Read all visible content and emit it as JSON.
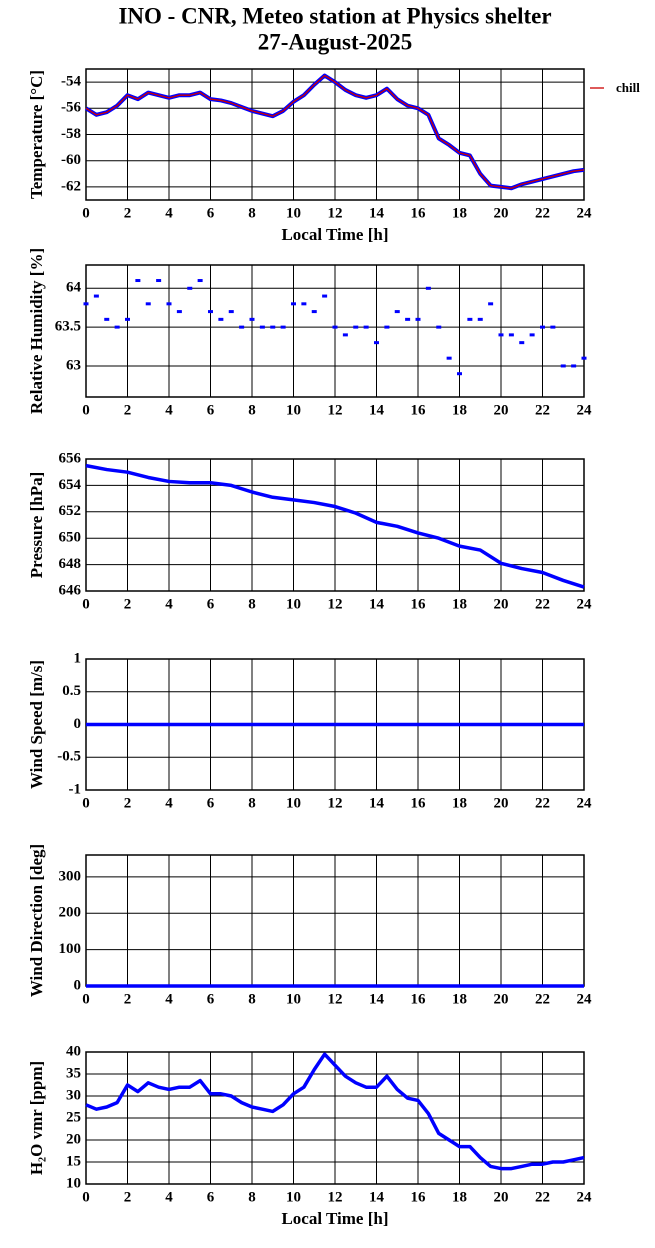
{
  "header": {
    "title": "INO - CNR, Meteo station at Physics shelter",
    "subtitle": "27-August-2025"
  },
  "chart_data": [
    {
      "type": "line",
      "ylabel": "Temperature [°C]",
      "xlabel": "Local Time [h]",
      "legend": "right",
      "x": [
        0,
        0.5,
        1,
        1.5,
        2,
        2.5,
        3,
        3.5,
        4,
        4.5,
        5,
        5.5,
        6,
        6.5,
        7,
        7.5,
        8,
        8.5,
        9,
        9.5,
        10,
        10.5,
        11,
        11.5,
        12,
        12.5,
        13,
        13.5,
        14,
        14.5,
        15,
        15.5,
        16,
        16.5,
        17,
        17.5,
        18,
        18.5,
        19,
        19.5,
        20,
        20.5,
        21,
        21.5,
        22,
        22.5,
        23,
        23.5,
        24
      ],
      "series": [
        {
          "name": "chill",
          "color": "#cc0000",
          "outline_color": "#0000ff",
          "values": [
            -56.0,
            -56.5,
            -56.3,
            -55.8,
            -55.0,
            -55.3,
            -54.8,
            -55.0,
            -55.2,
            -55.0,
            -55.0,
            -54.8,
            -55.3,
            -55.4,
            -55.6,
            -55.9,
            -56.2,
            -56.4,
            -56.6,
            -56.2,
            -55.5,
            -55.0,
            -54.2,
            -53.5,
            -54.0,
            -54.6,
            -55.0,
            -55.2,
            -55.0,
            -54.5,
            -55.3,
            -55.8,
            -56.0,
            -56.5,
            -58.3,
            -58.8,
            -59.4,
            -59.6,
            -61.0,
            -61.9,
            -62.0,
            -62.1,
            -61.8,
            -61.6,
            -61.4,
            -61.2,
            -61.0,
            -60.8,
            -60.7
          ]
        }
      ],
      "xlim": [
        0,
        24
      ],
      "xticks": [
        0,
        2,
        4,
        6,
        8,
        10,
        12,
        14,
        16,
        18,
        20,
        22,
        24
      ],
      "ylim": [
        -63,
        -53
      ],
      "yticks": [
        -62,
        -60,
        -58,
        -56,
        -54
      ],
      "grid": true
    },
    {
      "type": "scatter",
      "ylabel": "Relative Humidity [%]",
      "x": [
        0,
        0.5,
        1,
        1.5,
        2,
        2.5,
        3,
        3.5,
        4,
        4.5,
        5,
        5.5,
        6,
        6.5,
        7,
        7.5,
        8,
        8.5,
        9,
        9.5,
        10,
        10.5,
        11,
        11.5,
        12,
        12.5,
        13,
        13.5,
        14,
        14.5,
        15,
        15.5,
        16,
        16.5,
        17,
        17.5,
        18,
        18.5,
        19,
        19.5,
        20,
        20.5,
        21,
        21.5,
        22,
        22.5,
        23,
        23.5,
        24
      ],
      "series": [
        {
          "color": "#0000ff",
          "values": [
            63.8,
            63.9,
            63.6,
            63.5,
            63.6,
            64.1,
            63.8,
            64.1,
            63.8,
            63.7,
            64.0,
            64.1,
            63.7,
            63.6,
            63.7,
            63.5,
            63.6,
            63.5,
            63.5,
            63.5,
            63.8,
            63.8,
            63.7,
            63.9,
            63.5,
            63.4,
            63.5,
            63.5,
            63.3,
            63.5,
            63.7,
            63.6,
            63.6,
            64.0,
            63.5,
            63.1,
            62.9,
            63.6,
            63.6,
            63.8,
            63.4,
            63.4,
            63.3,
            63.4,
            63.5,
            63.5,
            63.0,
            63.0,
            63.1
          ]
        }
      ],
      "xlim": [
        0,
        24
      ],
      "xticks": [
        0,
        2,
        4,
        6,
        8,
        10,
        12,
        14,
        16,
        18,
        20,
        22,
        24
      ],
      "ylim": [
        62.6,
        64.3
      ],
      "yticks": [
        63,
        63.5,
        64
      ],
      "grid": true
    },
    {
      "type": "line",
      "ylabel": "Pressure [hPa]",
      "x": [
        0,
        1,
        2,
        3,
        4,
        5,
        6,
        7,
        8,
        9,
        10,
        11,
        12,
        13,
        14,
        15,
        16,
        17,
        18,
        19,
        20,
        21,
        22,
        23,
        24
      ],
      "series": [
        {
          "color": "#0000ff",
          "values": [
            655.5,
            655.2,
            655.0,
            654.6,
            654.3,
            654.2,
            654.2,
            654.0,
            653.5,
            653.1,
            652.9,
            652.7,
            652.4,
            651.9,
            651.2,
            650.9,
            650.4,
            650.0,
            649.4,
            649.1,
            648.1,
            647.7,
            647.4,
            646.8,
            646.3
          ]
        }
      ],
      "xlim": [
        0,
        24
      ],
      "xticks": [
        0,
        2,
        4,
        6,
        8,
        10,
        12,
        14,
        16,
        18,
        20,
        22,
        24
      ],
      "ylim": [
        646,
        656
      ],
      "yticks": [
        646,
        648,
        650,
        652,
        654,
        656
      ],
      "grid": true
    },
    {
      "type": "line",
      "ylabel": "Wind Speed [m/s]",
      "x": [
        0,
        24
      ],
      "series": [
        {
          "color": "#0000ff",
          "values": [
            0,
            0
          ]
        }
      ],
      "xlim": [
        0,
        24
      ],
      "xticks": [
        0,
        2,
        4,
        6,
        8,
        10,
        12,
        14,
        16,
        18,
        20,
        22,
        24
      ],
      "ylim": [
        -1,
        1
      ],
      "yticks": [
        -1,
        -0.5,
        0,
        0.5,
        1
      ],
      "grid": true
    },
    {
      "type": "line",
      "ylabel": "Wind Direction [deg]",
      "x": [
        0,
        24
      ],
      "series": [
        {
          "color": "#0000ff",
          "values": [
            0,
            0
          ]
        }
      ],
      "xlim": [
        0,
        24
      ],
      "xticks": [
        0,
        2,
        4,
        6,
        8,
        10,
        12,
        14,
        16,
        18,
        20,
        22,
        24
      ],
      "ylim": [
        0,
        360
      ],
      "yticks": [
        0,
        100,
        200,
        300
      ],
      "grid": true
    },
    {
      "type": "line",
      "ylabel": "H₂O vmr [ppm]",
      "xlabel": "Local Time [h]",
      "x": [
        0,
        0.5,
        1,
        1.5,
        2,
        2.5,
        3,
        3.5,
        4,
        4.5,
        5,
        5.5,
        6,
        6.5,
        7,
        7.5,
        8,
        8.5,
        9,
        9.5,
        10,
        10.5,
        11,
        11.5,
        12,
        12.5,
        13,
        13.5,
        14,
        14.5,
        15,
        15.5,
        16,
        16.5,
        17,
        17.5,
        18,
        18.5,
        19,
        19.5,
        20,
        20.5,
        21,
        21.5,
        22,
        22.5,
        23,
        23.5,
        24
      ],
      "series": [
        {
          "color": "#0000ff",
          "values": [
            28,
            27,
            27.5,
            28.5,
            32.5,
            31,
            33,
            32,
            31.5,
            32,
            32,
            33.5,
            30.5,
            30.5,
            30,
            28.5,
            27.5,
            27,
            26.5,
            28,
            30.5,
            32,
            36,
            39.5,
            37,
            34.5,
            33,
            32,
            32,
            34.5,
            31.5,
            29.5,
            29,
            26,
            21.5,
            20,
            18.5,
            18.5,
            16,
            14,
            13.5,
            13.5,
            14,
            14.5,
            14.5,
            15,
            15,
            15.5,
            16
          ]
        }
      ],
      "xlim": [
        0,
        24
      ],
      "xticks": [
        0,
        2,
        4,
        6,
        8,
        10,
        12,
        14,
        16,
        18,
        20,
        22,
        24
      ],
      "ylim": [
        10,
        40
      ],
      "yticks": [
        10,
        15,
        20,
        25,
        30,
        35,
        40
      ],
      "grid": true
    }
  ]
}
